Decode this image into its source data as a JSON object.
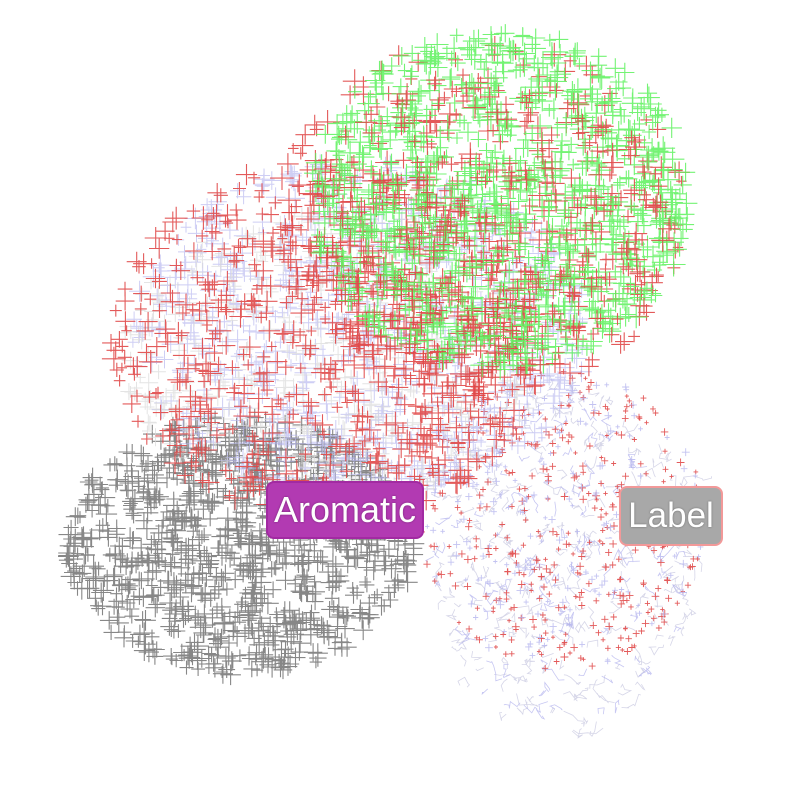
{
  "viewer": {
    "background": "#ffffff",
    "representations": [
      {
        "name": "cartoon-carbon-crosses",
        "color": "#7a7a7a"
      },
      {
        "name": "polar-crosses",
        "color": "#e04848"
      },
      {
        "name": "green-chain-crosses",
        "color": "#5cf15c"
      },
      {
        "name": "lavender-crosses",
        "color": "#b4b4ee"
      },
      {
        "name": "wire-lines",
        "color": "#c8c8e0"
      }
    ]
  },
  "labels": {
    "aromatic": {
      "text": "Aromatic",
      "background": "#b23ab2",
      "border": "#962896"
    },
    "generic": {
      "text": "Label",
      "background": "#a8a8a8",
      "border": "#ff9696"
    }
  }
}
